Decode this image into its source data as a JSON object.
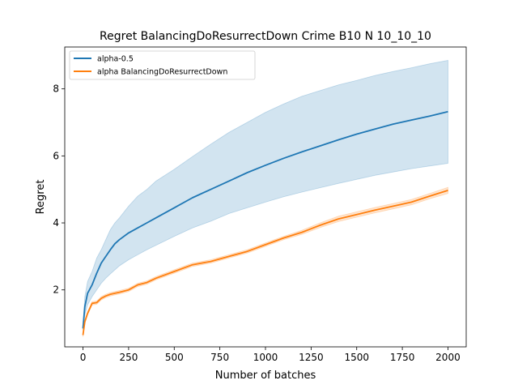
{
  "chart_data": {
    "type": "line",
    "title": "Regret BalancingDoResurrectDown Crime B10 N 10_10_10",
    "xlabel": "Number of batches",
    "ylabel": "Regret",
    "xlim": [
      -100,
      2100
    ],
    "ylim": [
      0.3,
      9.25
    ],
    "xticks": [
      0,
      250,
      500,
      750,
      1000,
      1250,
      1500,
      1750,
      2000
    ],
    "yticks": [
      2,
      4,
      6,
      8
    ],
    "grid": false,
    "legend_position": "upper-left",
    "series": [
      {
        "name": "alpha-0.5",
        "color": "#1f77b4",
        "band_color": "#1f77b4",
        "x": [
          0,
          10,
          25,
          50,
          75,
          100,
          125,
          150,
          175,
          200,
          250,
          300,
          350,
          400,
          500,
          600,
          700,
          800,
          900,
          1000,
          1100,
          1200,
          1300,
          1400,
          1500,
          1600,
          1700,
          1800,
          1900,
          2000
        ],
        "y": [
          0.85,
          1.5,
          1.9,
          2.15,
          2.5,
          2.8,
          3.0,
          3.2,
          3.38,
          3.5,
          3.7,
          3.85,
          4.0,
          4.15,
          4.45,
          4.75,
          5.0,
          5.25,
          5.5,
          5.72,
          5.93,
          6.12,
          6.3,
          6.48,
          6.65,
          6.8,
          6.95,
          7.07,
          7.19,
          7.32
        ],
        "lower": [
          0.8,
          1.25,
          1.55,
          1.8,
          2.0,
          2.2,
          2.35,
          2.48,
          2.6,
          2.72,
          2.9,
          3.05,
          3.2,
          3.33,
          3.6,
          3.85,
          4.05,
          4.28,
          4.45,
          4.62,
          4.78,
          4.92,
          5.05,
          5.18,
          5.3,
          5.42,
          5.52,
          5.62,
          5.7,
          5.78
        ],
        "upper": [
          0.95,
          1.8,
          2.25,
          2.55,
          2.95,
          3.2,
          3.5,
          3.8,
          4.0,
          4.15,
          4.5,
          4.8,
          5.0,
          5.25,
          5.6,
          5.98,
          6.35,
          6.7,
          7.0,
          7.3,
          7.55,
          7.78,
          7.95,
          8.12,
          8.25,
          8.4,
          8.52,
          8.63,
          8.75,
          8.85
        ]
      },
      {
        "name": "alpha BalancingDoResurrectDown",
        "color": "#ff7f0e",
        "band_color": "#ff7f0e",
        "x": [
          0,
          10,
          25,
          50,
          75,
          100,
          125,
          150,
          175,
          200,
          250,
          300,
          350,
          400,
          500,
          600,
          700,
          800,
          900,
          1000,
          1100,
          1200,
          1300,
          1400,
          1500,
          1600,
          1700,
          1800,
          1900,
          2000
        ],
        "y": [
          0.65,
          1.05,
          1.3,
          1.6,
          1.62,
          1.75,
          1.82,
          1.87,
          1.9,
          1.93,
          2.0,
          2.15,
          2.22,
          2.35,
          2.55,
          2.75,
          2.85,
          3.0,
          3.15,
          3.35,
          3.55,
          3.72,
          3.93,
          4.12,
          4.25,
          4.38,
          4.5,
          4.62,
          4.8,
          4.97
        ],
        "lower": [
          0.6,
          1.0,
          1.25,
          1.55,
          1.57,
          1.7,
          1.77,
          1.82,
          1.85,
          1.88,
          1.95,
          2.1,
          2.17,
          2.3,
          2.5,
          2.7,
          2.8,
          2.95,
          3.1,
          3.3,
          3.5,
          3.66,
          3.86,
          4.04,
          4.17,
          4.3,
          4.42,
          4.54,
          4.72,
          4.88
        ],
        "upper": [
          0.7,
          1.1,
          1.35,
          1.65,
          1.67,
          1.8,
          1.87,
          1.92,
          1.95,
          1.98,
          2.05,
          2.2,
          2.27,
          2.4,
          2.6,
          2.8,
          2.9,
          3.05,
          3.2,
          3.4,
          3.6,
          3.78,
          4.0,
          4.2,
          4.33,
          4.46,
          4.58,
          4.7,
          4.88,
          5.06
        ]
      }
    ]
  }
}
